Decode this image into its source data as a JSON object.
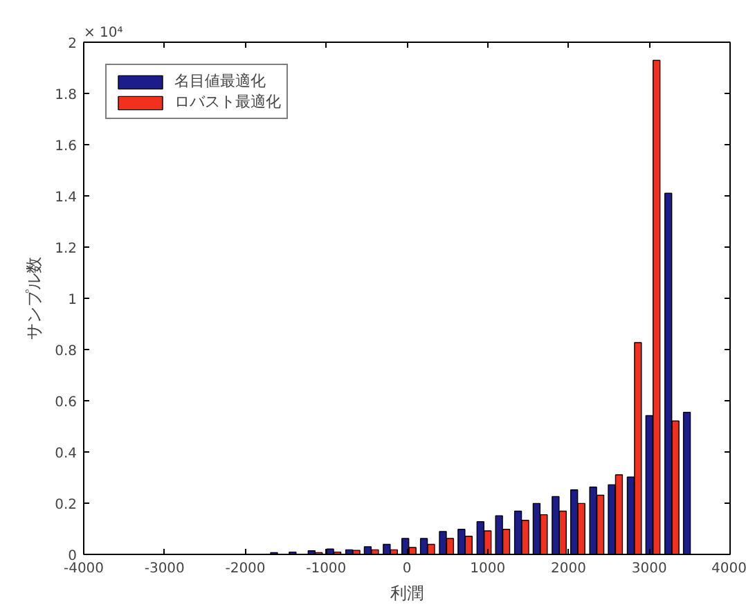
{
  "chart_data": {
    "type": "bar",
    "xlabel": "利潤",
    "ylabel": "サンプル数",
    "annotations": [
      "× 10⁴"
    ],
    "x": [
      -1600,
      -1370,
      -1135,
      -905,
      -670,
      -440,
      -205,
      25,
      255,
      490,
      720,
      955,
      1185,
      1420,
      1650,
      1885,
      2115,
      2350,
      2580,
      2815,
      3045,
      3280,
      3510
    ],
    "series": [
      {
        "name": "名目値最適化",
        "color": "#1c1c8a",
        "values": [
          0.007,
          0.009,
          0.014,
          0.021,
          0.018,
          0.03,
          0.039,
          0.062,
          0.062,
          0.089,
          0.098,
          0.128,
          0.151,
          0.169,
          0.199,
          0.226,
          0.252,
          0.263,
          0.272,
          0.302,
          0.542,
          1.41,
          0.555
        ]
      },
      {
        "name": "ロバスト最適化",
        "color": "#f2301e",
        "values": [
          null,
          null,
          0.007,
          0.009,
          0.016,
          0.018,
          0.018,
          0.027,
          0.039,
          0.062,
          0.071,
          0.092,
          0.098,
          0.133,
          0.155,
          0.169,
          0.199,
          0.231,
          0.311,
          0.827,
          1.929,
          0.521,
          null
        ]
      }
    ],
    "xlim": [
      -4000,
      4000
    ],
    "xticks": [
      -4000,
      -3000,
      -2000,
      -1000,
      0,
      1000,
      2000,
      3000,
      4000
    ],
    "ylim": [
      0,
      2
    ],
    "yticks": [
      0,
      0.2,
      0.4,
      0.6,
      0.8,
      1,
      1.2,
      1.4,
      1.6,
      1.8,
      2
    ],
    "grid": false,
    "legend": "top left"
  }
}
